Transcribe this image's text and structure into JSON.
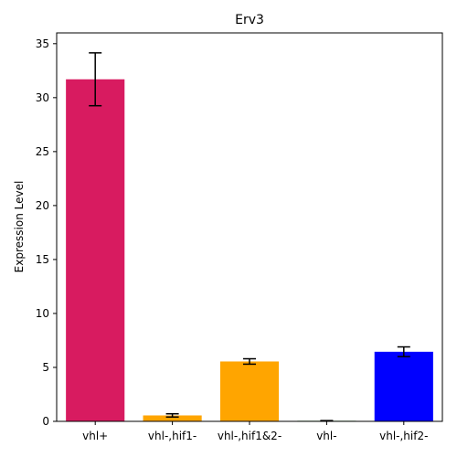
{
  "chart_data": {
    "type": "bar",
    "title": "Erv3",
    "xlabel": "",
    "ylabel": "Expression Level",
    "categories": [
      "vhl+",
      "vhl-,hif1-",
      "vhl-,hif1&2-",
      "vhl-",
      "vhl-,hif2-"
    ],
    "values": [
      31.7,
      0.55,
      5.55,
      0.05,
      6.45
    ],
    "errors": [
      2.45,
      0.15,
      0.25,
      0.02,
      0.45
    ],
    "colors": [
      "#d81b60",
      "#ffa500",
      "#ffa500",
      "#008000",
      "#0000ff"
    ],
    "ylim": [
      0,
      36
    ],
    "yticks": [
      0,
      5,
      10,
      15,
      20,
      25,
      30,
      35
    ],
    "grid": false
  }
}
